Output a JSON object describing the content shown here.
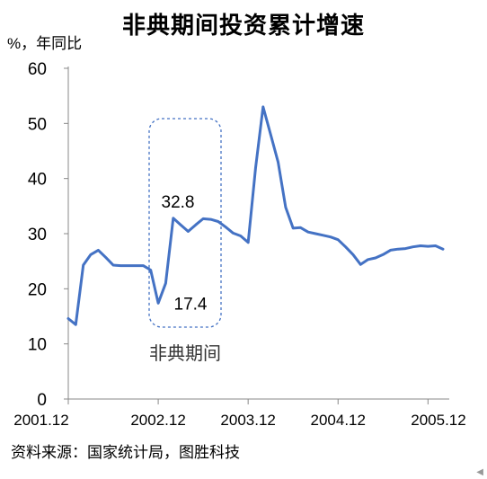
{
  "chart_data": {
    "type": "line",
    "title": "非典期间投资累计增速",
    "ylabel": "%，年同比",
    "ylim": [
      0,
      60
    ],
    "yticks": [
      0,
      10,
      20,
      30,
      40,
      50,
      60
    ],
    "xtick_labels": [
      "2001.12",
      "2002.12",
      "2003.12",
      "2004.12",
      "2005.12"
    ],
    "grid": false,
    "line_color": "#4472C4",
    "series": [
      {
        "values": [
          14.6,
          13.5,
          24.3,
          26.2,
          27.0,
          25.7,
          24.3,
          24.2,
          24.2,
          24.2,
          24.2,
          23.4,
          17.4,
          21.0,
          32.8,
          31.6,
          30.4,
          31.6,
          32.7,
          32.6,
          32.2,
          31.2,
          30.1,
          29.6,
          28.4,
          42.0,
          53.0,
          48.0,
          43.0,
          34.8,
          31.0,
          31.1,
          30.3,
          30.0,
          29.7,
          29.4,
          28.9,
          27.6,
          26.2,
          24.4,
          25.3,
          25.6,
          26.2,
          27.0,
          27.2,
          27.3,
          27.6,
          27.8,
          27.7,
          27.8,
          27.2
        ]
      }
    ],
    "annotations": [
      {
        "text": "32.8",
        "value": 32.8
      },
      {
        "text": "17.4",
        "value": 17.4
      }
    ],
    "highlight_region": {
      "label": "非典期间",
      "style": "dashed rounded box",
      "color": "#4472C4"
    }
  },
  "source_note": "资料来源：国家统计局，图胜科技"
}
